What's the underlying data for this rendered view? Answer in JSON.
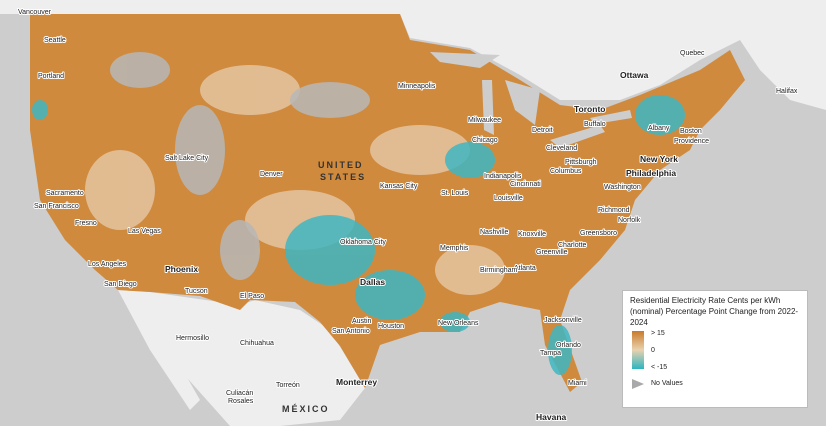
{
  "map": {
    "cities": [
      "Vancouver",
      "Seattle",
      "Portland",
      "Salt Lake City",
      "Sacramento",
      "San Francisco",
      "Fresno",
      "Las Vegas",
      "Los Angeles",
      "Phoenix",
      "San Diego",
      "Tucson",
      "El Paso",
      "Denver",
      "Minneapolis",
      "Milwaukee",
      "Chicago",
      "Detroit",
      "Toronto",
      "Ottawa",
      "Quebec",
      "Halifax",
      "Albany",
      "Boston",
      "Providence",
      "Buffalo",
      "Cleveland",
      "Pittsburgh",
      "New York",
      "Philadelphia",
      "Columbus",
      "Indianapolis",
      "Cincinnati",
      "Louisville",
      "St. Louis",
      "Kansas City",
      "Washington",
      "Richmond",
      "Norfolk",
      "Nashville",
      "Knoxville",
      "Charlotte",
      "Greensboro",
      "Greenville",
      "Atlanta",
      "Birmingham",
      "Memphis",
      "Oklahoma City",
      "Dallas",
      "Austin",
      "San Antonio",
      "Houston",
      "New Orleans",
      "Jacksonville",
      "Orlando",
      "Tampa",
      "Miami",
      "Hermosillo",
      "Chihuahua",
      "Torreón",
      "Monterrey",
      "Culiacán",
      "Rosales",
      "Havana"
    ],
    "country_labels": [
      "UNITED",
      "STATES",
      "MÉXICO"
    ],
    "legend": {
      "title": "Residential Electricity Rate Cents per kWh (nominal) Percentage Point Change from 2022-2024",
      "high": "> 15",
      "mid": "0",
      "low": "< -15",
      "none": "No Values"
    }
  }
}
